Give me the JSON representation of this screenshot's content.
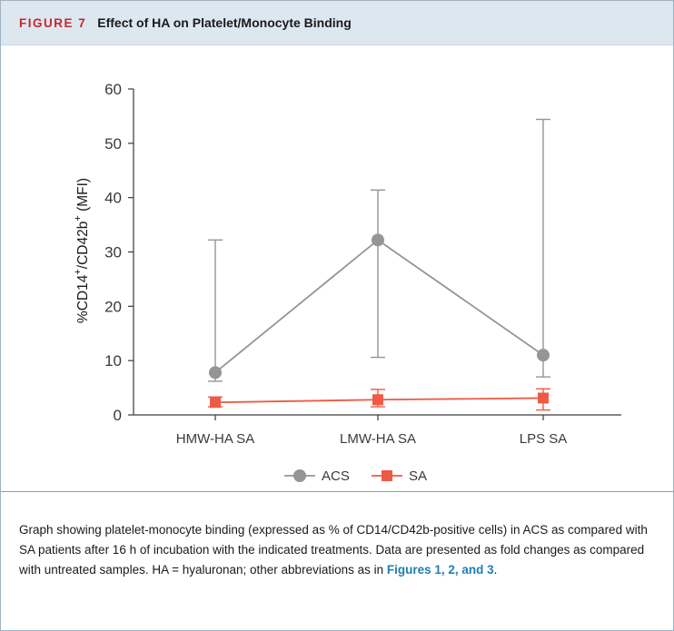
{
  "figure": {
    "label": "FIGURE 7",
    "title": "Effect of HA on Platelet/Monocyte Binding"
  },
  "chart_data": {
    "type": "line",
    "title": "",
    "ylabel_main": "%CD14",
    "ylabel_sup1": "+",
    "ylabel_mid": "/CD42b",
    "ylabel_sup2": "+",
    "ylabel_tail": " (MFI)",
    "categories": [
      "HMW-HA SA",
      "LMW-HA SA",
      "LPS SA"
    ],
    "ylim": [
      0,
      60
    ],
    "yticks": [
      0,
      10,
      20,
      30,
      40,
      50,
      60
    ],
    "grid": false,
    "legend_position": "bottom-center",
    "series": [
      {
        "name": "ACS",
        "values": [
          7.8,
          32.2,
          11.0
        ],
        "err_low": [
          6.2,
          10.6,
          7.0
        ],
        "err_high": [
          32.2,
          41.4,
          54.4
        ],
        "color": "#959595",
        "marker": "circle"
      },
      {
        "name": "SA",
        "values": [
          2.3,
          2.8,
          3.1
        ],
        "err_low": [
          1.5,
          1.5,
          0.9
        ],
        "err_high": [
          3.3,
          4.7,
          4.8
        ],
        "color": "#ee5a45",
        "marker": "square"
      }
    ]
  },
  "caption": {
    "text_1": "Graph showing platelet-monocyte binding (expressed as % of CD14/CD42b-positive cells) in ACS as compared with SA patients after 16 h of incubation with the indicated treatments. Data are presented as fold changes as compared with untreated samples. HA = hyaluronan; other abbreviations as in ",
    "ref": "Figures 1, 2, and 3",
    "text_2": "."
  }
}
